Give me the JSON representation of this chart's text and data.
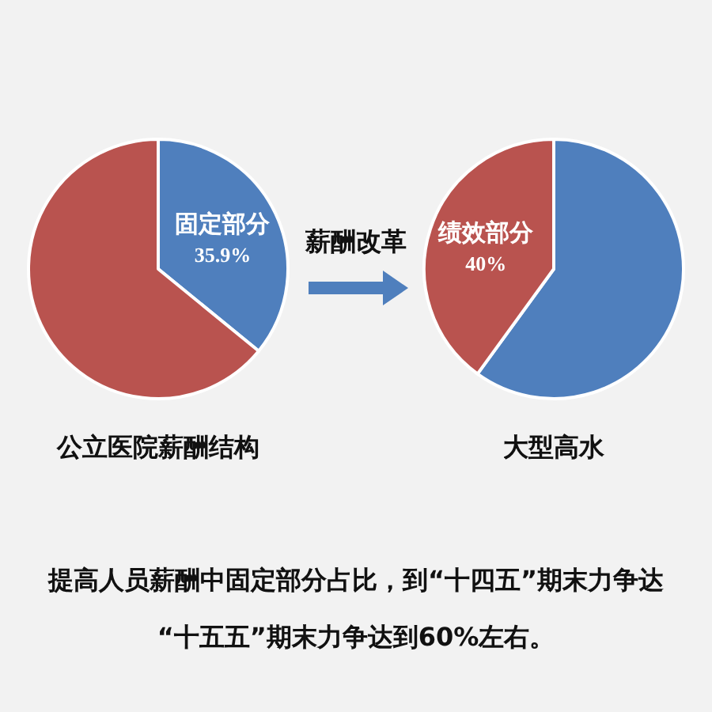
{
  "chart_data": [
    {
      "type": "pie",
      "title": "公立医院薪酬结构",
      "categories": [
        "固定部分",
        null
      ],
      "values": [
        35.9,
        64.1
      ],
      "value_labels": [
        "35.9%",
        null
      ],
      "colors": [
        "#4f7fbd",
        "#b9534f"
      ]
    },
    {
      "type": "pie",
      "title": "大型高水",
      "categories": [
        null,
        "绩效部分"
      ],
      "values": [
        60,
        40
      ],
      "value_labels": [
        null,
        "40%"
      ],
      "colors": [
        "#4f7fbd",
        "#b9534f"
      ]
    },
    {
      "type": "other",
      "annotations": [
        "薪酬改革",
        "提高人员薪酬中固定部分占比，到“十四五”期末力争达",
        "“十五五”期末力争达到60%左右。"
      ]
    }
  ]
}
